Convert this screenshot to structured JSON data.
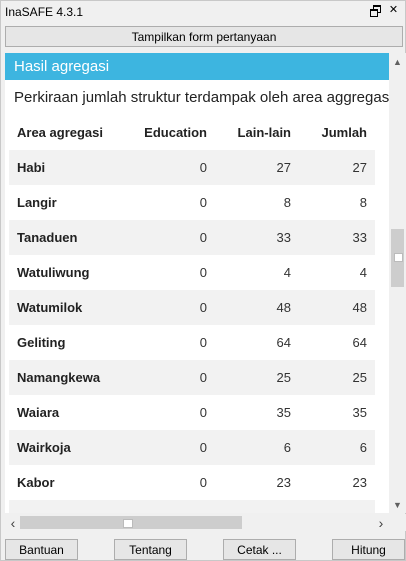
{
  "window": {
    "title": "InaSAFE 4.3.1"
  },
  "toolbar": {
    "show_form_label": "Tampilkan form pertanyaan"
  },
  "report": {
    "section_title": "Hasil agregasi",
    "description": "Perkiraan jumlah struktur terdampak oleh area aggregasi",
    "columns": [
      "Area agregasi",
      "Education",
      "Lain-lain",
      "Jumlah"
    ],
    "rows": [
      {
        "area": "Habi",
        "education": "0",
        "other": "27",
        "total": "27"
      },
      {
        "area": "Langir",
        "education": "0",
        "other": "8",
        "total": "8"
      },
      {
        "area": "Tanaduen",
        "education": "0",
        "other": "33",
        "total": "33"
      },
      {
        "area": "Watuliwung",
        "education": "0",
        "other": "4",
        "total": "4"
      },
      {
        "area": "Watumilok",
        "education": "0",
        "other": "48",
        "total": "48"
      },
      {
        "area": "Geliting",
        "education": "0",
        "other": "64",
        "total": "64"
      },
      {
        "area": "Namangkewa",
        "education": "0",
        "other": "25",
        "total": "25"
      },
      {
        "area": "Waiara",
        "education": "0",
        "other": "35",
        "total": "35"
      },
      {
        "area": "Wairkoja",
        "education": "0",
        "other": "6",
        "total": "6"
      },
      {
        "area": "Kabor",
        "education": "0",
        "other": "23",
        "total": "23"
      }
    ]
  },
  "buttons": {
    "help": "Bantuan",
    "about": "Tentang",
    "print": "Cetak ...",
    "run": "Hitung"
  },
  "colors": {
    "section_header": "#3db5e0",
    "row_alt": "#f2f2f2"
  },
  "icons": {
    "float": "float-window-icon",
    "close": "close-icon"
  }
}
